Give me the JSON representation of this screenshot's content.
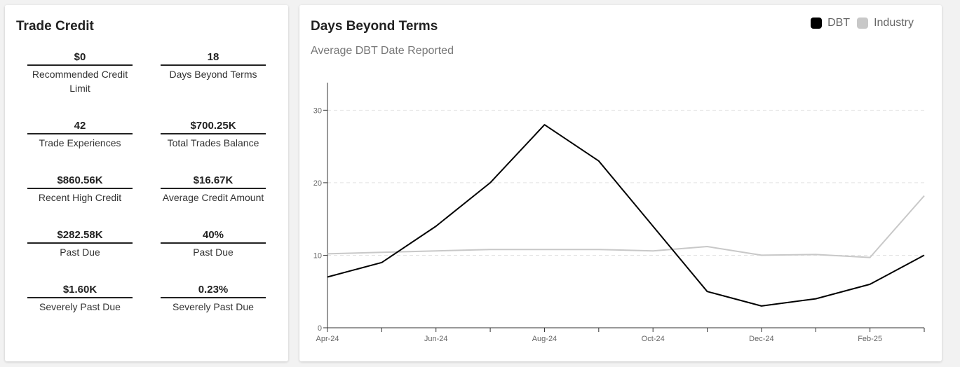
{
  "trade_credit": {
    "title": "Trade Credit",
    "metrics": [
      {
        "value": "$0",
        "label": "Recommended Credit Limit"
      },
      {
        "value": "18",
        "label": "Days Beyond Terms"
      },
      {
        "value": "42",
        "label": "Trade Experiences"
      },
      {
        "value": "$700.25K",
        "label": "Total Trades Balance"
      },
      {
        "value": "$860.56K",
        "label": "Recent High Credit"
      },
      {
        "value": "$16.67K",
        "label": "Average Credit Amount"
      },
      {
        "value": "$282.58K",
        "label": "Past Due"
      },
      {
        "value": "40%",
        "label": "Past Due"
      },
      {
        "value": "$1.60K",
        "label": "Severely Past Due"
      },
      {
        "value": "0.23%",
        "label": "Severely Past Due"
      }
    ]
  },
  "colors": {
    "dbt": "#000000",
    "industry": "#c8c8c8",
    "grid": "#e2e2e2"
  },
  "chart_data": {
    "type": "line",
    "title": "Days Beyond Terms",
    "subtitle": "Average DBT Date Reported",
    "x": [
      "Apr-24",
      "May-24",
      "Jun-24",
      "Jul-24",
      "Aug-24",
      "Sep-24",
      "Oct-24",
      "Nov-24",
      "Dec-24",
      "Jan-25",
      "Feb-25",
      "Mar-25"
    ],
    "tick_labels": [
      "Apr-24",
      "",
      "Jun-24",
      "",
      "Aug-24",
      "",
      "Oct-24",
      "",
      "Dec-24",
      "",
      "Feb-25",
      ""
    ],
    "series": [
      {
        "name": "DBT",
        "values": [
          7,
          9,
          14,
          20,
          28,
          23,
          14,
          5,
          3,
          4,
          6,
          10
        ]
      },
      {
        "name": "Industry",
        "values": [
          10.2,
          10.4,
          10.6,
          10.8,
          10.8,
          10.8,
          10.6,
          11.2,
          10.0,
          10.1,
          9.7,
          18.2
        ]
      }
    ],
    "yticks": [
      0,
      10,
      20,
      30
    ],
    "ylim": [
      0,
      33.8
    ],
    "legend": [
      "DBT",
      "Industry"
    ],
    "legend_position": "top-right",
    "grid": true
  }
}
